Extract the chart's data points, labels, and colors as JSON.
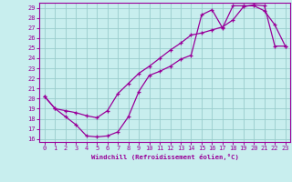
{
  "xlabel": "Windchill (Refroidissement éolien,°C)",
  "xlim": [
    -0.5,
    23.5
  ],
  "ylim": [
    15.7,
    29.5
  ],
  "xticks": [
    0,
    1,
    2,
    3,
    4,
    5,
    6,
    7,
    8,
    9,
    10,
    11,
    12,
    13,
    14,
    15,
    16,
    17,
    18,
    19,
    20,
    21,
    22,
    23
  ],
  "yticks": [
    16,
    17,
    18,
    19,
    20,
    21,
    22,
    23,
    24,
    25,
    26,
    27,
    28,
    29
  ],
  "bg_color": "#c8eeee",
  "line_color": "#990099",
  "grid_color": "#99cccc",
  "curve1_x": [
    0,
    1,
    2,
    3,
    4,
    5,
    6,
    7,
    8,
    9,
    10,
    11,
    12,
    13,
    14,
    15,
    16,
    17,
    18,
    19,
    20,
    21,
    22,
    23
  ],
  "curve1_y": [
    20.2,
    19.0,
    18.2,
    17.4,
    16.3,
    16.2,
    16.3,
    16.7,
    18.2,
    20.7,
    22.3,
    22.7,
    23.2,
    23.9,
    24.3,
    28.3,
    28.8,
    27.0,
    29.2,
    29.2,
    29.2,
    28.7,
    27.3,
    25.2
  ],
  "curve2_x": [
    0,
    1,
    2,
    3,
    4,
    5,
    6,
    7,
    8,
    9,
    10,
    11,
    12,
    13,
    14,
    15,
    16,
    17,
    18,
    19,
    20,
    21,
    22,
    23
  ],
  "curve2_y": [
    20.2,
    19.0,
    18.8,
    18.6,
    18.3,
    18.1,
    18.8,
    20.5,
    21.5,
    22.5,
    23.2,
    24.0,
    24.8,
    25.5,
    26.3,
    26.5,
    26.8,
    27.1,
    27.8,
    29.1,
    29.3,
    29.2,
    25.2,
    25.2
  ]
}
